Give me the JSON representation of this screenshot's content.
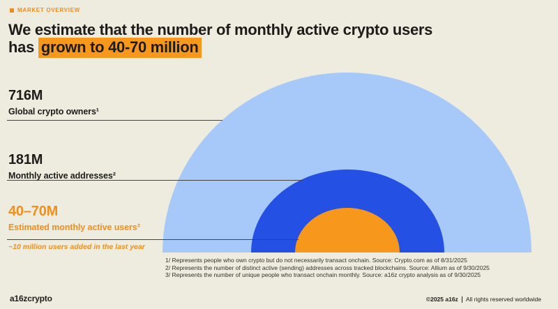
{
  "eyebrow": "MARKET OVERVIEW",
  "title": {
    "line1": "We estimate that the number of monthly active crypto users",
    "line2_prefix": "has ",
    "line2_highlight": "grown to 40-70 million"
  },
  "stats": [
    {
      "value": "716M",
      "label": "Global crypto owners¹"
    },
    {
      "value": "181M",
      "label": "Monthly active addresses²"
    },
    {
      "value": "40–70M",
      "label": "Estimated monthly active users³"
    }
  ],
  "note": "~10 million users added in the last year",
  "footnotes": [
    "1/ Represents people who own crypto but do not necessarily transact onchain. Source: Crypto.com as of 8/31/2025",
    "2/ Represents the number of distinct active (sending) addresses across tracked blockchains. Source: Allium as of 9/30/2025",
    "3/ Represents the number of unique people who transact onchain monthly. Source: a16z crypto analysis as of 9/30/2025"
  ],
  "footer": {
    "logo": "a16zcrypto",
    "copyright": "©2025 a16z",
    "rights": "All rights reserved worldwide"
  },
  "colors": {
    "background": "#edecdf",
    "accent_orange": "#f7981d",
    "orange_text": "#ef8f1d",
    "light_blue": "#a7c9f9",
    "blue": "#2451e3",
    "ink": "#1d1c1a"
  },
  "chart_data": {
    "type": "pie",
    "variant": "nested_proportional_semicircles",
    "title": "We estimate that the number of monthly active crypto users has grown to 40-70 million",
    "legend_position": "left",
    "series": [
      {
        "name": "Global crypto owners",
        "label": "716M",
        "value_millions": 716,
        "color": "#a7c9f9"
      },
      {
        "name": "Monthly active addresses",
        "label": "181M",
        "value_millions": 181,
        "color": "#2451e3"
      },
      {
        "name": "Estimated monthly active users",
        "label": "40–70M",
        "value_millions_range": [
          40,
          70
        ],
        "value_millions_mid": 55,
        "color": "#f7981d"
      }
    ],
    "annotation": "~10 million users added in the last year"
  }
}
